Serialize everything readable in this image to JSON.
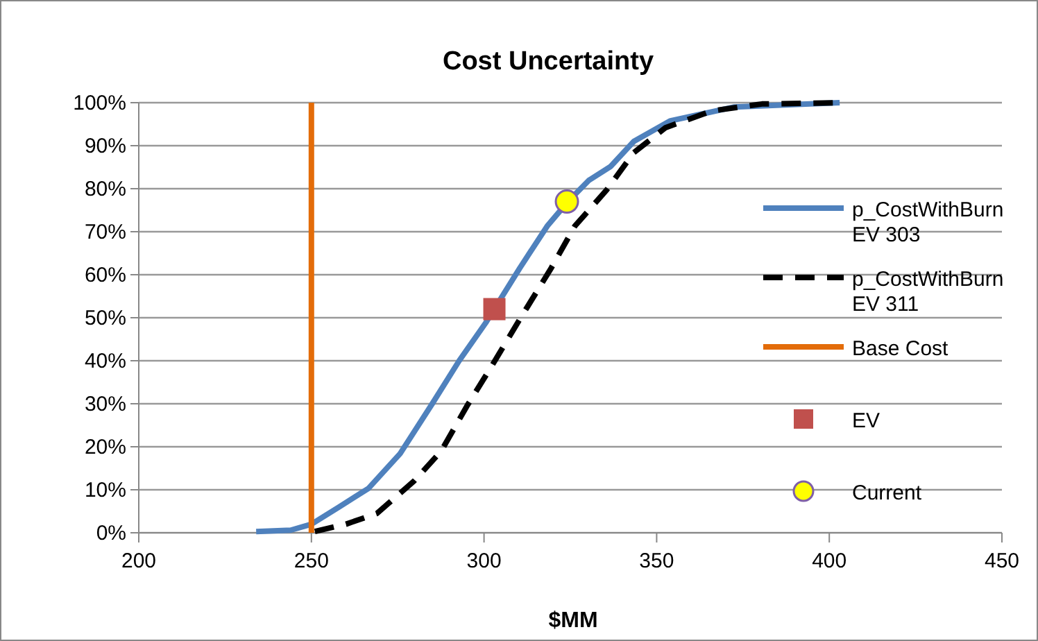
{
  "chart_data": {
    "type": "line",
    "title": "Cost Uncertainty",
    "xlabel": "$MM",
    "xlim": [
      200,
      450
    ],
    "xticks": [
      200,
      250,
      300,
      350,
      400,
      450
    ],
    "ylim": [
      0,
      100
    ],
    "yticks": [
      {
        "value": 0,
        "label": "0%"
      },
      {
        "value": 10,
        "label": "10%"
      },
      {
        "value": 20,
        "label": "20%"
      },
      {
        "value": 30,
        "label": "30%"
      },
      {
        "value": 40,
        "label": "40%"
      },
      {
        "value": 50,
        "label": "50%"
      },
      {
        "value": 60,
        "label": "60%"
      },
      {
        "value": 70,
        "label": "70%"
      },
      {
        "value": 80,
        "label": "80%"
      },
      {
        "value": 90,
        "label": "90%"
      },
      {
        "value": 100,
        "label": "100%"
      }
    ],
    "grid": "y",
    "legend": "right",
    "series": [
      {
        "name": "p_CostWithBurn EV 303",
        "color": "#4f81bd",
        "line_style": "solid",
        "x": [
          234,
          244,
          250,
          258,
          266.5,
          275.7,
          285,
          292.8,
          300.4,
          310.4,
          318.3,
          324.3,
          330.3,
          336.7,
          343.4,
          354,
          372.5,
          403
        ],
        "values": [
          0.3,
          0.6,
          2,
          6,
          10.3,
          18.4,
          30,
          40,
          48.7,
          61.6,
          71.3,
          77,
          81.9,
          85.2,
          91,
          95.8,
          99,
          100
        ]
      },
      {
        "name": "p_CostWithBurn EV 311",
        "color": "#000000",
        "line_style": "dashed",
        "x": [
          251,
          260,
          269,
          279.7,
          287.6,
          295,
          302.4,
          310.4,
          319.5,
          326.3,
          335.5,
          343.4,
          352.6,
          366.1,
          380.5,
          403
        ],
        "values": [
          0.3,
          2,
          4.5,
          12,
          19,
          29.4,
          39,
          49.7,
          61.6,
          71.3,
          79.7,
          88.4,
          94.2,
          98.1,
          99.7,
          100
        ]
      },
      {
        "name": "Base Cost",
        "color": "#e36c09",
        "line_style": "solid",
        "x": [
          250,
          250
        ],
        "values": [
          0,
          100
        ]
      },
      {
        "name": "EV",
        "type": "scatter",
        "color": "#c0504d",
        "marker": "square",
        "x": [
          303
        ],
        "values": [
          52
        ]
      },
      {
        "name": "Current",
        "type": "scatter",
        "color": "#ffff00",
        "marker": "circle",
        "x": [
          324
        ],
        "values": [
          77
        ]
      }
    ]
  }
}
